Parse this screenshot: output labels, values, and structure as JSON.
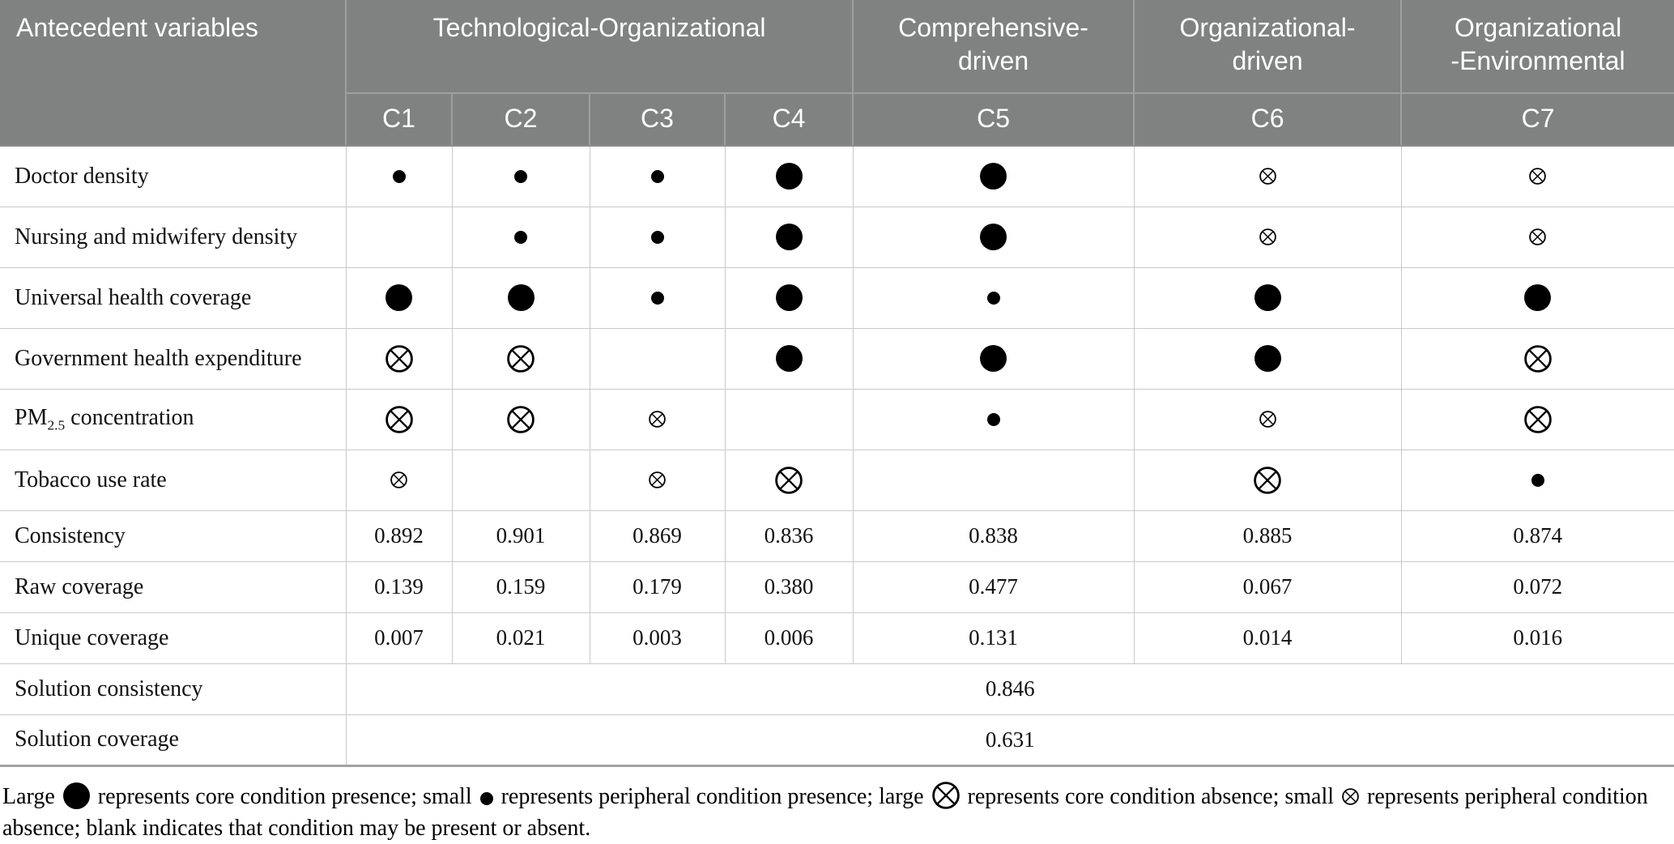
{
  "table": {
    "header": {
      "antecedent_label": "Antecedent variables",
      "groups": [
        {
          "label": "Technological-Organizational",
          "span": 4
        },
        {
          "label": "Comprehensive-\ndriven",
          "span": 1
        },
        {
          "label": "Organizational-\ndriven",
          "span": 1
        },
        {
          "label": "Organizational\n-Environmental",
          "span": 1
        }
      ],
      "config_columns": [
        "C1",
        "C2",
        "C3",
        "C4",
        "C5",
        "C6",
        "C7"
      ]
    },
    "symbol_rows": [
      {
        "label": "Doctor density",
        "cells": [
          "peripheral-present",
          "peripheral-present",
          "peripheral-present",
          "core-present",
          "core-present",
          "peripheral-absent",
          "peripheral-absent"
        ]
      },
      {
        "label": "Nursing and midwifery density",
        "cells": [
          "blank",
          "peripheral-present",
          "peripheral-present",
          "core-present",
          "core-present",
          "peripheral-absent",
          "peripheral-absent"
        ]
      },
      {
        "label": "Universal health coverage",
        "cells": [
          "core-present",
          "core-present",
          "peripheral-present",
          "core-present",
          "peripheral-present",
          "core-present",
          "core-present"
        ]
      },
      {
        "label": "Government health expenditure",
        "cells": [
          "core-absent",
          "core-absent",
          "blank",
          "core-present",
          "core-present",
          "core-present",
          "core-absent"
        ]
      },
      {
        "label_pre": "PM",
        "label_sub": "2.5",
        "label_post": " concentration",
        "cells": [
          "core-absent",
          "core-absent",
          "peripheral-absent",
          "blank",
          "peripheral-present",
          "peripheral-absent",
          "core-absent"
        ]
      },
      {
        "label": "Tobacco use rate",
        "cells": [
          "peripheral-absent",
          "blank",
          "peripheral-absent",
          "core-absent",
          "blank",
          "core-absent",
          "peripheral-present"
        ]
      }
    ],
    "stat_rows": [
      {
        "label": "Consistency",
        "values": [
          "0.892",
          "0.901",
          "0.869",
          "0.836",
          "0.838",
          "0.885",
          "0.874"
        ]
      },
      {
        "label": "Raw coverage",
        "values": [
          "0.139",
          "0.159",
          "0.179",
          "0.380",
          "0.477",
          "0.067",
          "0.072"
        ]
      },
      {
        "label": "Unique coverage",
        "values": [
          "0.007",
          "0.021",
          "0.003",
          "0.006",
          "0.131",
          "0.014",
          "0.016"
        ]
      }
    ],
    "solution_rows": [
      {
        "label": "Solution consistency",
        "value": "0.846"
      },
      {
        "label": "Solution coverage",
        "value": "0.631"
      }
    ]
  },
  "footnote": {
    "segments": [
      {
        "text": "Large "
      },
      {
        "symbol": "core-present"
      },
      {
        "text": " represents core condition presence; small "
      },
      {
        "symbol": "peripheral-present"
      },
      {
        "text": " represents peripheral condition presence; large "
      },
      {
        "symbol": "core-absent"
      },
      {
        "text": " represents core condition absence; small "
      },
      {
        "symbol": "peripheral-absent"
      },
      {
        "text": " represents peripheral condition absence; blank indicates that condition may be present or absent."
      }
    ]
  },
  "legend_symbols": {
    "core-present": "large filled circle — core condition presence",
    "peripheral-present": "small filled circle — peripheral condition presence",
    "core-absent": "large circled cross — core condition absence",
    "peripheral-absent": "small circled cross — peripheral condition absence",
    "blank": "condition may be present or absent"
  },
  "colors": {
    "header_bg": "#808281",
    "header_divider": "#9da09f",
    "header_text": "#ffffff",
    "body_border": "#c9c9c9",
    "bottom_border": "#a2a2a2",
    "symbol_color": "#000000"
  }
}
